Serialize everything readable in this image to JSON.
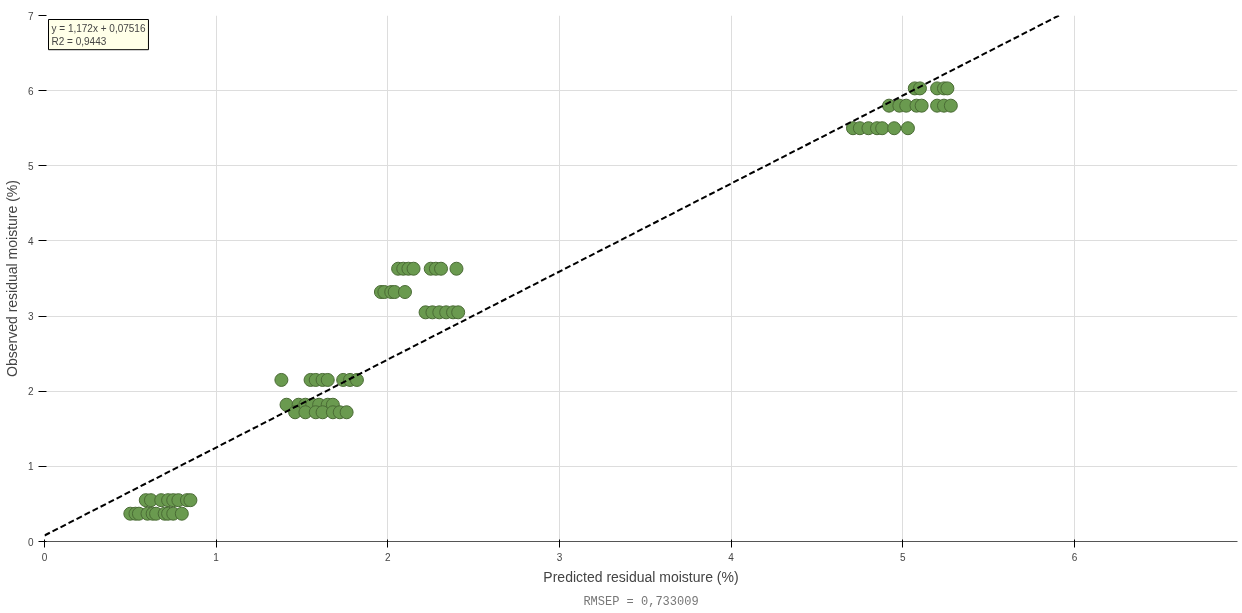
{
  "chart_data": {
    "type": "scatter",
    "xlabel": "Predicted residual moisture (%)",
    "ylabel": "Observed residual moisture (%)",
    "xlim": [
      0,
      6.95
    ],
    "ylim": [
      0,
      7
    ],
    "xticks": [
      0,
      1,
      2,
      3,
      4,
      5,
      6
    ],
    "yticks": [
      0,
      1,
      2,
      3,
      4,
      5,
      6,
      7
    ],
    "grid": true,
    "annotations": [
      "y = 1,172x + 0,07516",
      "R2 = 0,9443",
      "RMSEP = 0,733009"
    ],
    "series": [
      {
        "color": "#6a9a4f",
        "marker": "circle",
        "x": [
          0.59,
          0.62,
          0.68,
          0.72,
          0.75,
          0.78,
          0.83,
          0.85,
          0.5,
          0.53,
          0.55,
          0.6,
          0.63,
          0.65,
          0.7,
          0.72,
          0.75,
          0.8,
          1.38,
          1.55,
          1.58,
          1.62,
          1.65,
          1.74,
          1.78,
          1.82,
          1.41,
          1.48,
          1.52,
          1.56,
          1.6,
          1.65,
          1.68,
          1.46,
          1.52,
          1.58,
          1.62,
          1.68,
          1.72,
          1.76,
          2.06,
          2.09,
          2.12,
          2.15,
          2.25,
          2.28,
          2.31,
          2.4,
          1.96,
          1.98,
          2.02,
          2.04,
          2.1,
          2.22,
          2.26,
          2.3,
          2.34,
          2.38,
          2.41,
          5.07,
          5.1,
          5.2,
          5.24,
          5.26,
          4.92,
          4.98,
          5.02,
          5.08,
          5.11,
          5.2,
          5.24,
          5.28,
          4.71,
          4.75,
          4.8,
          4.85,
          4.88,
          4.95,
          5.03
        ],
        "values": [
          0.55,
          0.55,
          0.55,
          0.55,
          0.55,
          0.55,
          0.55,
          0.55,
          0.37,
          0.37,
          0.37,
          0.37,
          0.37,
          0.37,
          0.37,
          0.37,
          0.37,
          0.37,
          2.15,
          2.15,
          2.15,
          2.15,
          2.15,
          2.15,
          2.15,
          2.15,
          1.82,
          1.82,
          1.82,
          1.82,
          1.82,
          1.82,
          1.82,
          1.72,
          1.72,
          1.72,
          1.72,
          1.72,
          1.72,
          1.72,
          3.63,
          3.63,
          3.63,
          3.63,
          3.63,
          3.63,
          3.63,
          3.63,
          3.32,
          3.32,
          3.32,
          3.32,
          3.32,
          3.05,
          3.05,
          3.05,
          3.05,
          3.05,
          3.05,
          6.03,
          6.03,
          6.03,
          6.03,
          6.03,
          5.8,
          5.8,
          5.8,
          5.8,
          5.8,
          5.8,
          5.8,
          5.8,
          5.5,
          5.5,
          5.5,
          5.5,
          5.5,
          5.5,
          5.5
        ]
      },
      {
        "type": "line",
        "color": "#000000",
        "line_style": "dashed",
        "x": [
          0,
          5.91
        ],
        "values": [
          0.08,
          7.0
        ]
      }
    ]
  }
}
